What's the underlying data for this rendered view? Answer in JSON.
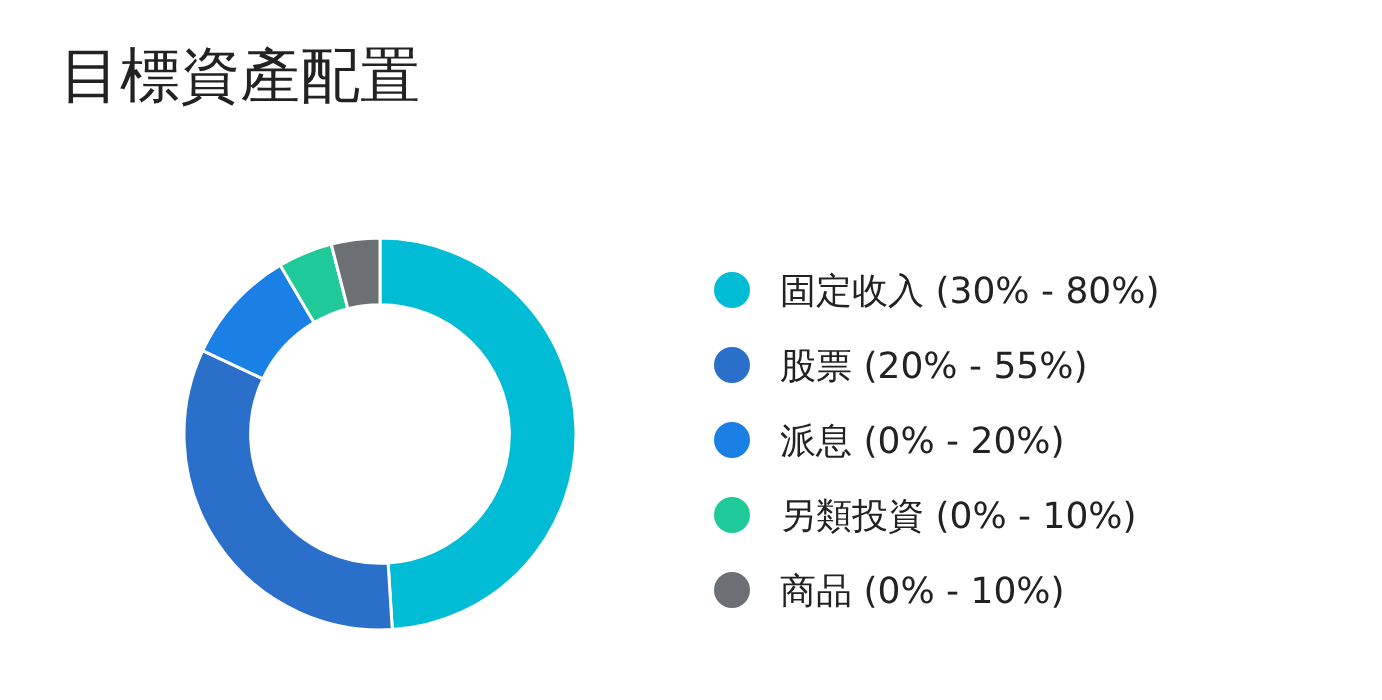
{
  "chart_data": {
    "type": "donut",
    "title": "目標資產配置",
    "categories": [
      "固定收入 (30% - 80%)",
      "股票 (20% - 55%)",
      "派息 (0% - 20%)",
      "另類投資 (0% - 10%)",
      "商品 (0% - 10%)"
    ],
    "values": [
      49,
      33,
      9.5,
      4.5,
      4
    ],
    "colors": [
      "#00bcd4",
      "#2a6fc9",
      "#1a80e6",
      "#1fca98",
      "#6c7075"
    ],
    "legend": "right"
  }
}
